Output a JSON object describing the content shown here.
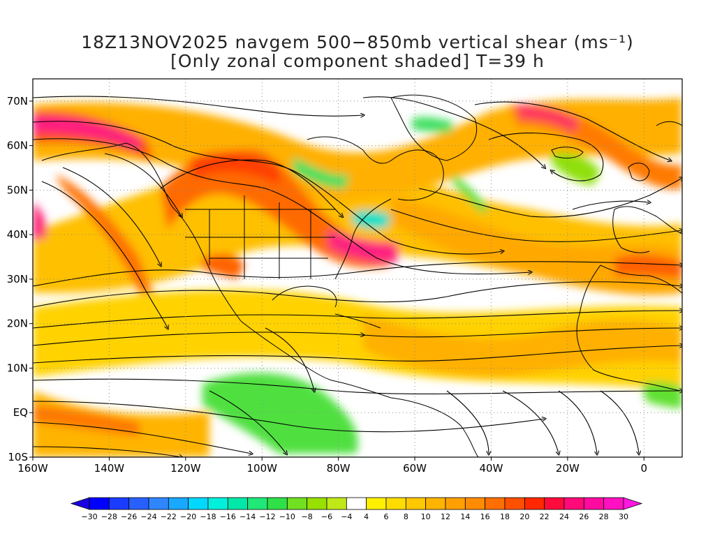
{
  "title": {
    "line1": "18Z13NOV2025 navgem 500−850mb vertical shear (ms⁻¹)",
    "line2": "[Only zonal component shaded] T=39 h"
  },
  "map": {
    "lon_range": [
      -160,
      10
    ],
    "lat_range": [
      -10,
      75
    ],
    "lat_labels": [
      {
        "lat": 70,
        "text": "70N"
      },
      {
        "lat": 60,
        "text": "60N"
      },
      {
        "lat": 50,
        "text": "50N"
      },
      {
        "lat": 40,
        "text": "40N"
      },
      {
        "lat": 30,
        "text": "30N"
      },
      {
        "lat": 20,
        "text": "20N"
      },
      {
        "lat": 10,
        "text": "10N"
      },
      {
        "lat": 0,
        "text": "EQ"
      },
      {
        "lat": -10,
        "text": "10S"
      }
    ],
    "lon_labels": [
      {
        "lon": -160,
        "text": "160W"
      },
      {
        "lon": -140,
        "text": "140W"
      },
      {
        "lon": -120,
        "text": "120W"
      },
      {
        "lon": -100,
        "text": "100W"
      },
      {
        "lon": -80,
        "text": "80W"
      },
      {
        "lon": -60,
        "text": "60W"
      },
      {
        "lon": -40,
        "text": "40W"
      },
      {
        "lon": -20,
        "text": "20W"
      },
      {
        "lon": 0,
        "text": "0"
      }
    ],
    "gridlines": "dotted"
  },
  "colorbar": {
    "labels": [
      "−30",
      "−28",
      "−26",
      "−24",
      "−22",
      "−20",
      "−18",
      "−16",
      "−14",
      "−12",
      "−10",
      "−8",
      "−6",
      "−4",
      "4",
      "6",
      "8",
      "10",
      "12",
      "14",
      "16",
      "18",
      "20",
      "22",
      "24",
      "26",
      "28",
      "30"
    ],
    "colors": [
      "#0000ff",
      "#1a3cff",
      "#2860ff",
      "#2f86ff",
      "#18a8ff",
      "#00d8ff",
      "#00f0dc",
      "#00e8a8",
      "#20e878",
      "#30e048",
      "#70e020",
      "#98e000",
      "#c0e818",
      "#ffffff",
      "#fff000",
      "#ffdc00",
      "#ffc800",
      "#ffb400",
      "#ffa000",
      "#ff8c00",
      "#ff6e00",
      "#ff5000",
      "#ff2800",
      "#ff0a3c",
      "#ff0a78",
      "#ff0aa0",
      "#ff10c0"
    ],
    "under_color": "#1a00e0",
    "over_color": "#ff18e0"
  }
}
